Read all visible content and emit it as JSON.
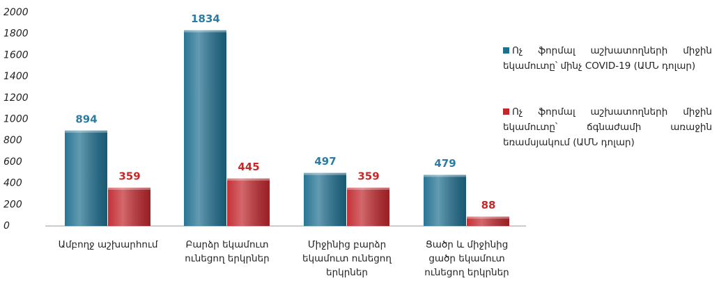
{
  "chart_data": {
    "type": "bar",
    "categories": [
      "Ամբողջ աշխարհում",
      "Բարձր եկամուտ ունեցող երկրներ",
      "Միջինից բարձր եկամուտ ունեցող երկրներ",
      "Ցածր և միջինից ցածր եկամուտ ունեցող երկրներ"
    ],
    "series": [
      {
        "name": "Ոչ ֆորմալ աշխատողների միջին եկամուտը՝ մինչ COVID-19 (ԱՄՆ դոլար)",
        "color": "#1f6f8f",
        "label_color": "#2a7ca3",
        "values": [
          894,
          1834,
          497,
          479
        ]
      },
      {
        "name": "Ոչ ֆորմալ աշխատողների միջին եկամուտը՝ ճգնաժամի առաջին եռամսյակում (ԱՄՆ դոլար)",
        "color": "#c0272d",
        "label_color": "#c62828",
        "values": [
          359,
          445,
          359,
          88
        ]
      }
    ],
    "ylim": [
      0,
      2000
    ],
    "yticks": [
      0,
      200,
      400,
      600,
      800,
      1000,
      1200,
      1400,
      1600,
      1800,
      2000
    ],
    "grid": false,
    "legend": "right"
  }
}
